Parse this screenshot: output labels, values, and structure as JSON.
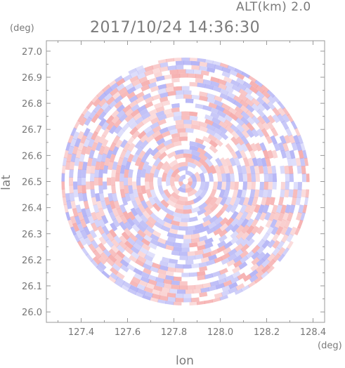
{
  "header": {
    "altitude": "ALT(km) 2.0",
    "timestamp": "2017/10/24 14:36:30"
  },
  "chart_data": {
    "type": "heatmap",
    "title": "2017/10/24 14:36:30",
    "xlabel": "lon",
    "ylabel": "lat",
    "xunit": "(deg)",
    "yunit": "(deg)",
    "xlim": [
      127.25,
      128.45
    ],
    "ylim": [
      25.96,
      27.04
    ],
    "xticks": [
      127.4,
      127.6,
      127.8,
      128.0,
      128.2,
      128.4
    ],
    "xtick_labels": [
      "127.4",
      "127.6",
      "127.8",
      "128.0",
      "128.2",
      "128.4"
    ],
    "yticks": [
      26.0,
      26.1,
      26.2,
      26.3,
      26.4,
      26.5,
      26.6,
      26.7,
      26.8,
      26.9,
      27.0
    ],
    "ytick_labels": [
      "26.0",
      "26.1",
      "26.2",
      "26.3",
      "26.4",
      "26.5",
      "26.6",
      "26.7",
      "26.8",
      "26.9",
      "27.0"
    ],
    "radar_center": [
      127.85,
      26.5
    ],
    "radar_radius_deg": 0.535,
    "colors": {
      "positive": "#f4a0a0",
      "negative": "#a8a8f4",
      "neutral": "#ffffff"
    }
  }
}
